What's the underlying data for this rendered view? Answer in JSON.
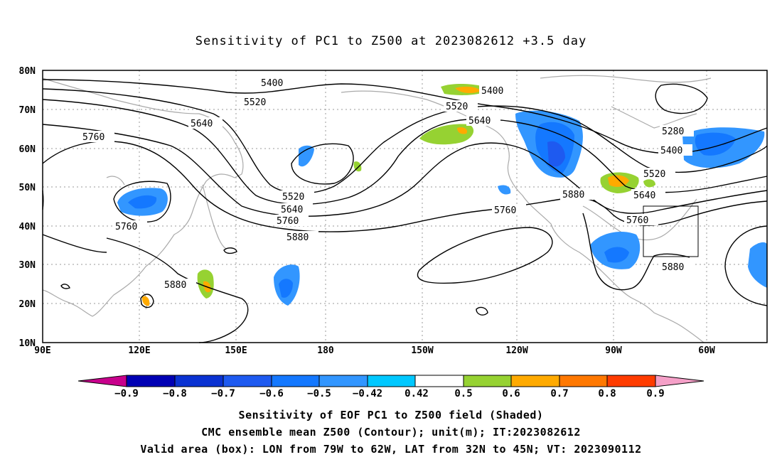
{
  "title": "Sensitivity of PC1 to Z500 at 2023082612 +3.5 day",
  "axes": {
    "lat_labels": [
      "80N",
      "70N",
      "60N",
      "50N",
      "40N",
      "30N",
      "20N",
      "10N"
    ],
    "lon_labels": [
      "90E",
      "120E",
      "150E",
      "180",
      "150W",
      "120W",
      "90W",
      "60W"
    ]
  },
  "contour_labels": [
    "5400",
    "5520",
    "5640",
    "5760",
    "5280",
    "5400",
    "5520",
    "5640",
    "5400",
    "5520",
    "5640",
    "5760",
    "5880",
    "5880",
    "5760",
    "5880",
    "5760",
    "5880",
    "5760"
  ],
  "colorbar": {
    "labels": [
      "−0.9",
      "−0.8",
      "−0.7",
      "−0.6",
      "−0.5",
      "−0.42",
      "0.42",
      "0.5",
      "0.6",
      "0.7",
      "0.8",
      "0.9"
    ],
    "colors": [
      "#c8008c",
      "#0000b4",
      "#0a32d2",
      "#1e5af0",
      "#1478ff",
      "#3296ff",
      "#00c8ff",
      "#ffffff",
      "#96d232",
      "#ffaa00",
      "#ff7800",
      "#ff3c00",
      "#ff0000",
      "#f5a0c8"
    ]
  },
  "captions": [
    "Sensitivity of EOF PC1 to Z500 field (Shaded)",
    "CMC ensemble mean Z500 (Contour); unit(m); IT:2023082612",
    "Valid area (box): LON from 79W to 62W, LAT from 32N to 45N; VT: 2023090112"
  ]
}
